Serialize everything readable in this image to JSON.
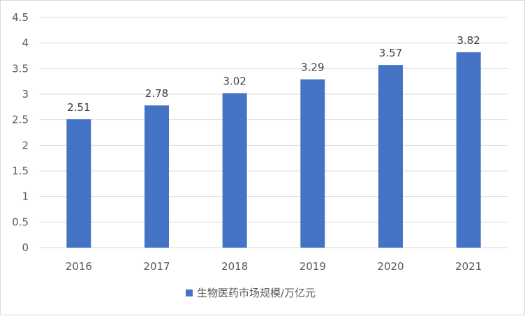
{
  "chart_data": {
    "type": "bar",
    "categories": [
      "2016",
      "2017",
      "2018",
      "2019",
      "2020",
      "2021"
    ],
    "series": [
      {
        "name": "生物医药市场规模/万亿元",
        "values": [
          2.51,
          2.78,
          3.02,
          3.29,
          3.57,
          3.82
        ],
        "labels": [
          "2.51",
          "2.78",
          "3.02",
          "3.29",
          "3.57",
          "3.82"
        ],
        "color": "#4472c4"
      }
    ],
    "ylim": [
      0,
      4.5
    ],
    "yticks": [
      "0",
      "0.5",
      "1",
      "1.5",
      "2",
      "2.5",
      "3",
      "3.5",
      "4",
      "4.5"
    ],
    "grid": true,
    "legend_position": "bottom"
  }
}
